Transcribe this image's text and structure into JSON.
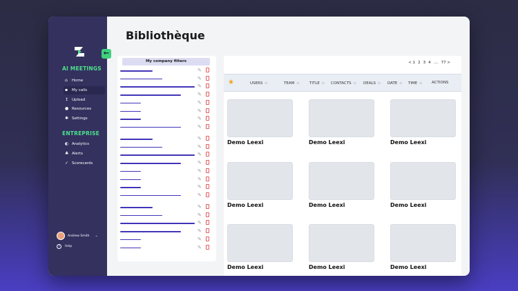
{
  "sidebar": {
    "sections": [
      {
        "title": "AI MEETINGS",
        "items": [
          {
            "label": "Home",
            "icon": "home-icon"
          },
          {
            "label": "My calls",
            "icon": "calls-icon",
            "active": true
          },
          {
            "label": "Upload",
            "icon": "upload-icon"
          },
          {
            "label": "Resources",
            "icon": "resources-icon"
          },
          {
            "label": "Settings",
            "icon": "gear-icon"
          }
        ]
      },
      {
        "title": "ENTREPRISE",
        "items": [
          {
            "label": "Analytics",
            "icon": "analytics-icon"
          },
          {
            "label": "Alerts",
            "icon": "bell-icon"
          },
          {
            "label": "Scorecards",
            "icon": "check-icon"
          }
        ]
      }
    ],
    "user": {
      "name": "Andrew Smith"
    },
    "help_label": "Help",
    "colors": {
      "background": "#34315f",
      "accent": "#4be08a"
    }
  },
  "page": {
    "title": "Bibliothèque"
  },
  "filters": {
    "header": "My company filters",
    "rows": [
      {
        "level": 0.35
      },
      {
        "level": 0.45
      },
      {
        "level": 0.8
      },
      {
        "level": 0.65
      },
      {
        "level": 0.22
      },
      {
        "level": 0.22
      },
      {
        "level": 0.22
      },
      {
        "level": 0.65
      },
      {
        "level": 0.35
      },
      {
        "level": 0.45
      },
      {
        "level": 0.8
      },
      {
        "level": 0.65
      },
      {
        "level": 0.22
      },
      {
        "level": 0.22
      },
      {
        "level": 0.22
      },
      {
        "level": 0.65
      },
      {
        "level": 0.35
      },
      {
        "level": 0.45
      },
      {
        "level": 0.8
      },
      {
        "level": 0.65
      },
      {
        "level": 0.22
      },
      {
        "level": 0.22
      }
    ],
    "colors": {
      "line": "#3f33b8",
      "delete": "#e35a5a"
    }
  },
  "pagination": {
    "items": [
      "< 1",
      "2",
      "3",
      "4",
      "....",
      "77 >"
    ]
  },
  "table": {
    "columns": [
      "USERS",
      "TEAM",
      "TITLE",
      "CONTACTS",
      "DEALS",
      "DATE",
      "TIME",
      "ACTIONS"
    ],
    "star_color": "#f3a21a"
  },
  "cards": [
    {
      "title": "Demo Leexi"
    },
    {
      "title": "Demo Leexi"
    },
    {
      "title": "Demo Leexi"
    },
    {
      "title": "Demo Leexi"
    },
    {
      "title": "Demo Leexi"
    },
    {
      "title": "Demo Leexi"
    },
    {
      "title": "Demo Leexi"
    },
    {
      "title": "Demo Leexi"
    },
    {
      "title": "Demo Leexi"
    }
  ]
}
